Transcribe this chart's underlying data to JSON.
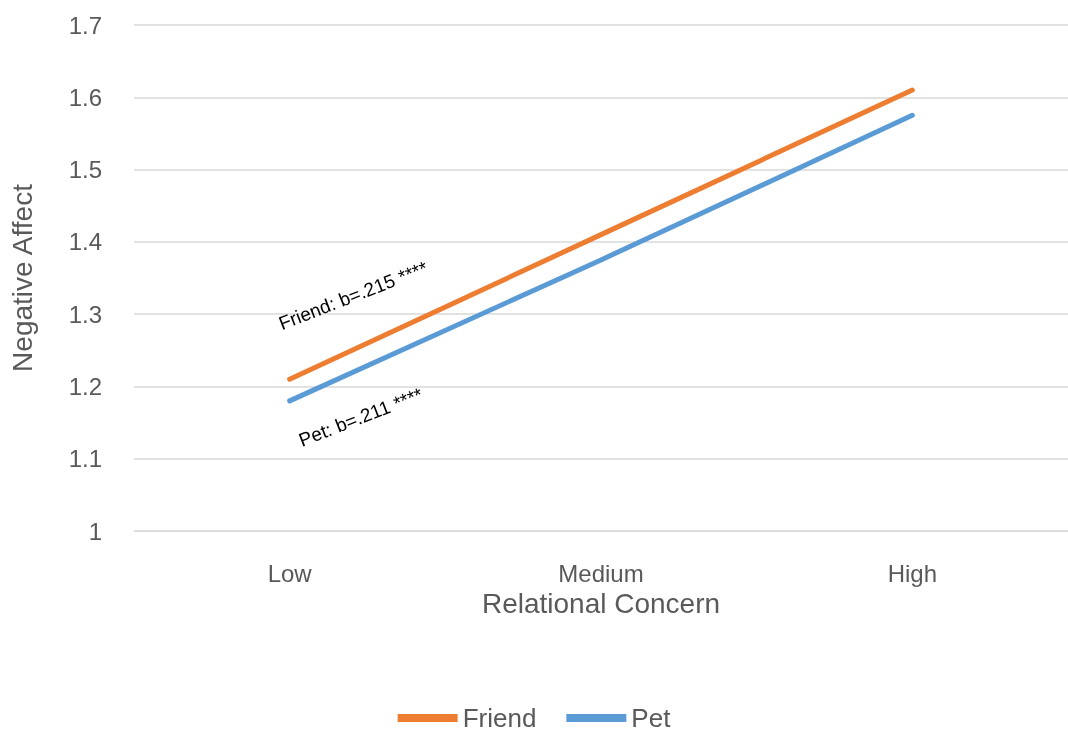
{
  "chart_data": {
    "type": "line",
    "xlabel": "Relational Concern",
    "ylabel": "Negative Affect",
    "categories": [
      "Low",
      "Medium",
      "High"
    ],
    "series": [
      {
        "name": "Friend",
        "color": "#ed7d31",
        "values": [
          1.21,
          1.41,
          1.61
        ]
      },
      {
        "name": "Pet",
        "color": "#5b9bd5",
        "values": [
          1.18,
          1.375,
          1.575
        ]
      }
    ],
    "ylim": [
      1,
      1.7
    ],
    "yticks": [
      1,
      1.1,
      1.2,
      1.3,
      1.4,
      1.5,
      1.6,
      1.7
    ],
    "grid": "y",
    "legend": "bottom",
    "marker": "none",
    "line_style": "solid",
    "annotations": [
      "Friend: b=.215 ****",
      "Pet: b=.211 ****"
    ]
  }
}
